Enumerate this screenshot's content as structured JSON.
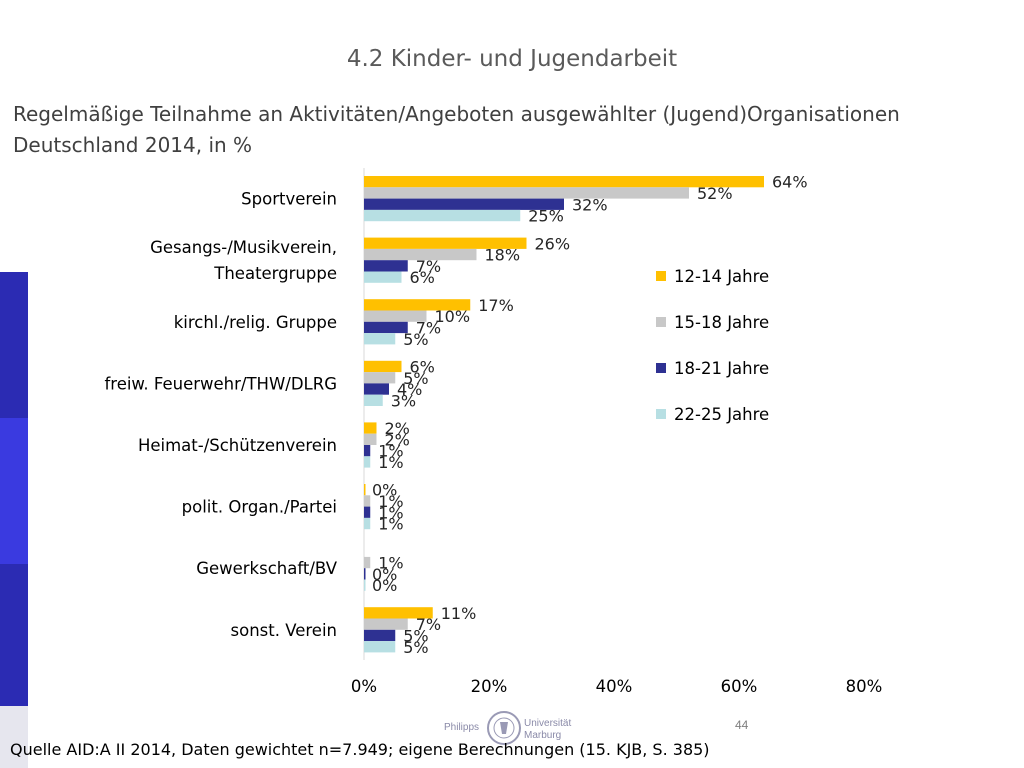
{
  "header": {
    "section_title": "4.2 Kinder- und Jugendarbeit",
    "subtitle_line1": "Regelmäßige Teilnahme an Aktivitäten/Angeboten ausgewählter (Jugend)Organisationen",
    "subtitle_line2": "Deutschland 2014, in %"
  },
  "footer": {
    "source": "Quelle AID:A II 2014,  Daten gewichtet n=7.949; eigene Berechnungen (15. KJB, S. 385)",
    "page_number": "44",
    "logo_left": "Philipps",
    "logo_right_1": "Universität",
    "logo_right_2": "Marburg"
  },
  "colors": {
    "side_bar_dark": "#2b2bb3",
    "side_bar_light": "#3a3ae0",
    "side_bar_faint": "#e6e6ee"
  },
  "chart_data": {
    "type": "bar",
    "orientation": "horizontal",
    "categories": [
      [
        "Sportverein"
      ],
      [
        "Gesangs-/Musikverein,",
        "Theatergruppe"
      ],
      [
        "kirchl./relig. Gruppe"
      ],
      [
        "freiw. Feuerwehr/THW/DLRG"
      ],
      [
        "Heimat-/Schützenverein"
      ],
      [
        "polit. Organ./Partei"
      ],
      [
        "Gewerkschaft/BV"
      ],
      [
        "sonst. Verein"
      ]
    ],
    "series": [
      {
        "name": "12-14 Jahre",
        "color": "#ffc000",
        "values": [
          64,
          26,
          17,
          6,
          2,
          0,
          null,
          11
        ]
      },
      {
        "name": "15-18 Jahre",
        "color": "#c8c8c8",
        "values": [
          52,
          18,
          10,
          5,
          2,
          1,
          1,
          7
        ]
      },
      {
        "name": "18-21 Jahre",
        "color": "#2e3192",
        "values": [
          32,
          7,
          7,
          4,
          1,
          1,
          0,
          5
        ]
      },
      {
        "name": "22-25 Jahre",
        "color": "#b7dfe3",
        "values": [
          25,
          6,
          5,
          3,
          1,
          1,
          0,
          5
        ]
      }
    ],
    "value_suffix": "%",
    "xlim": [
      0,
      80
    ],
    "xticks": [
      "0%",
      "20%",
      "40%",
      "60%",
      "80%"
    ],
    "grid": false,
    "legend_position": "right"
  }
}
